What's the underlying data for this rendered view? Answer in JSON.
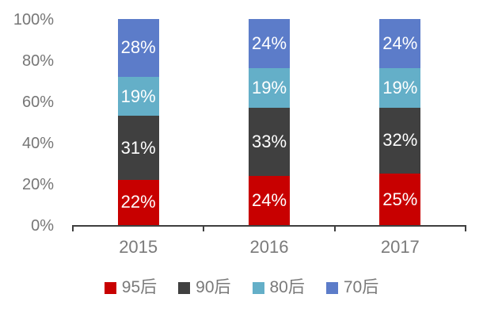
{
  "chart_data": {
    "type": "bar",
    "subtype": "stacked-100-percent",
    "categories": [
      "2015",
      "2016",
      "2017"
    ],
    "series": [
      {
        "name": "95后",
        "color": "#c80000",
        "values": [
          22,
          24,
          25
        ]
      },
      {
        "name": "90后",
        "color": "#404040",
        "values": [
          31,
          33,
          32
        ]
      },
      {
        "name": "80后",
        "color": "#64afc8",
        "values": [
          19,
          19,
          19
        ]
      },
      {
        "name": "70后",
        "color": "#5c7cc9",
        "values": [
          28,
          24,
          24
        ]
      }
    ],
    "data_labels": true,
    "label_suffix": "%",
    "y_ticks": [
      "0%",
      "20%",
      "40%",
      "60%",
      "80%",
      "100%"
    ],
    "ylim": [
      0,
      100
    ],
    "grid": false,
    "legend_position": "bottom",
    "axis_color": "#3f3f3f",
    "tick_text_color": "#767676",
    "data_label_color": "#ffffff",
    "background": "#ffffff"
  }
}
